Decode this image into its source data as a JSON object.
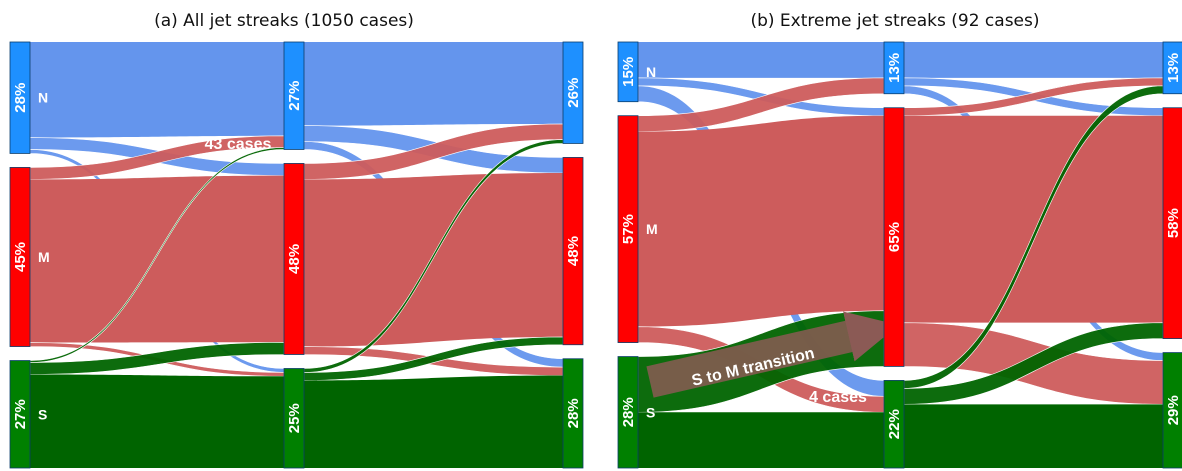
{
  "colors": {
    "N": "#6495ED",
    "M": "#CD5C5C",
    "S": "#006400",
    "Nbar": "#1E90FF",
    "Mbar": "#FF0000",
    "Sbar": "#008000"
  },
  "chart_data": [
    {
      "type": "sankey",
      "title": "(a) All jet streaks (1050 cases)",
      "categories": [
        "N",
        "M",
        "S"
      ],
      "stages": [
        {
          "shares": {
            "N": 28,
            "M": 45,
            "S": 27
          },
          "labels": {
            "N": "28%",
            "M": "45%",
            "S": "27%"
          }
        },
        {
          "shares": {
            "N": 27,
            "M": 48,
            "S": 25
          },
          "labels": {
            "N": "27%",
            "M": "48%",
            "S": "25%"
          }
        },
        {
          "shares": {
            "N": 26,
            "M": 48,
            "S": 28
          },
          "labels": {
            "N": "26%",
            "M": "48%",
            "S": "28%"
          }
        }
      ],
      "flows": [
        [
          {
            "from": "N",
            "to": "N",
            "value": 24
          },
          {
            "from": "N",
            "to": "M",
            "value": 3
          },
          {
            "from": "N",
            "to": "S",
            "value": 1
          },
          {
            "from": "M",
            "to": "N",
            "value": 3
          },
          {
            "from": "M",
            "to": "M",
            "value": 41
          },
          {
            "from": "M",
            "to": "S",
            "value": 1
          },
          {
            "from": "S",
            "to": "N",
            "value": 0.5
          },
          {
            "from": "S",
            "to": "M",
            "value": 3
          },
          {
            "from": "S",
            "to": "S",
            "value": 23.5
          }
        ],
        [
          {
            "from": "N",
            "to": "N",
            "value": 21
          },
          {
            "from": "N",
            "to": "M",
            "value": 4
          },
          {
            "from": "N",
            "to": "S",
            "value": 2
          },
          {
            "from": "M",
            "to": "N",
            "value": 4
          },
          {
            "from": "M",
            "to": "M",
            "value": 42
          },
          {
            "from": "M",
            "to": "S",
            "value": 2
          },
          {
            "from": "S",
            "to": "N",
            "value": 1
          },
          {
            "from": "S",
            "to": "M",
            "value": 2
          },
          {
            "from": "S",
            "to": "S",
            "value": 22
          }
        ]
      ],
      "annotations": [
        {
          "text": "43 cases",
          "flow": "M to N"
        }
      ]
    },
    {
      "type": "sankey",
      "title": "(b) Extreme jet streaks (92 cases)",
      "categories": [
        "N",
        "M",
        "S"
      ],
      "stages": [
        {
          "shares": {
            "N": 15,
            "M": 57,
            "S": 28
          },
          "labels": {
            "N": "15%",
            "M": "57%",
            "S": "28%"
          }
        },
        {
          "shares": {
            "N": 13,
            "M": 65,
            "S": 22
          },
          "labels": {
            "N": "13%",
            "M": "65%",
            "S": "22%"
          }
        },
        {
          "shares": {
            "N": 13,
            "M": 58,
            "S": 29
          },
          "labels": {
            "N": "13%",
            "M": "58%",
            "S": "29%"
          }
        }
      ],
      "flows": [
        [
          {
            "from": "N",
            "to": "N",
            "value": 9
          },
          {
            "from": "N",
            "to": "M",
            "value": 2
          },
          {
            "from": "N",
            "to": "S",
            "value": 4
          },
          {
            "from": "M",
            "to": "N",
            "value": 4
          },
          {
            "from": "M",
            "to": "M",
            "value": 49
          },
          {
            "from": "M",
            "to": "S",
            "value": 4
          },
          {
            "from": "S",
            "to": "N",
            "value": 0
          },
          {
            "from": "S",
            "to": "M",
            "value": 14
          },
          {
            "from": "S",
            "to": "S",
            "value": 14
          }
        ],
        [
          {
            "from": "N",
            "to": "N",
            "value": 9
          },
          {
            "from": "N",
            "to": "M",
            "value": 2
          },
          {
            "from": "N",
            "to": "S",
            "value": 2
          },
          {
            "from": "M",
            "to": "N",
            "value": 2
          },
          {
            "from": "M",
            "to": "M",
            "value": 52
          },
          {
            "from": "M",
            "to": "S",
            "value": 11
          },
          {
            "from": "S",
            "to": "N",
            "value": 2
          },
          {
            "from": "S",
            "to": "M",
            "value": 4
          },
          {
            "from": "S",
            "to": "S",
            "value": 16
          }
        ]
      ],
      "annotations": [
        {
          "text": "4 cases",
          "flow": "M to S"
        },
        {
          "text": "S to M transition",
          "flow": "S to M"
        }
      ]
    }
  ]
}
